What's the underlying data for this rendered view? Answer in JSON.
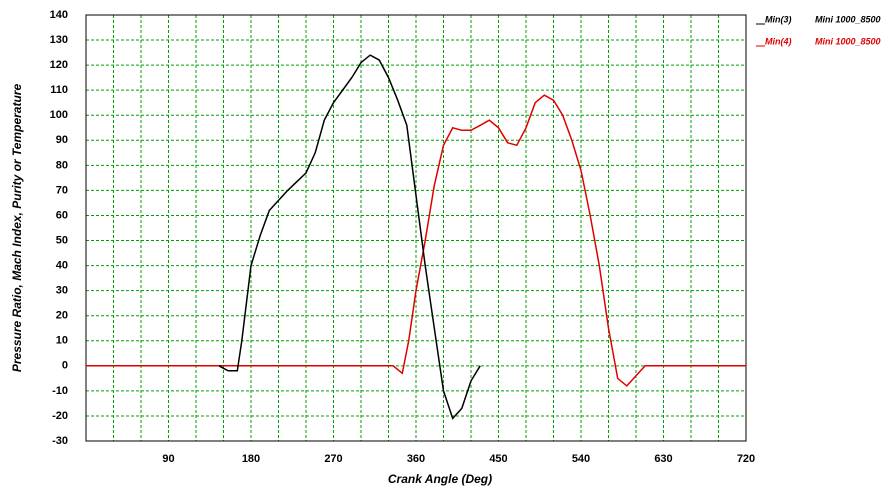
{
  "chart_data": {
    "type": "line",
    "xlabel": "Crank Angle (Deg)",
    "ylabel": "Pressure Ratio, Mach Index, Purity or Temperature",
    "xlim": [
      0,
      720
    ],
    "xticks": [
      90,
      180,
      270,
      360,
      450,
      540,
      630,
      720
    ],
    "xminor_ticks": [
      0,
      30,
      60,
      90,
      120,
      150,
      180,
      210,
      240,
      270,
      300,
      330,
      360,
      390,
      420,
      450,
      480,
      510,
      540,
      570,
      600,
      630,
      660,
      690,
      720
    ],
    "ylim": [
      -30,
      140
    ],
    "yticks": [
      -30,
      -20,
      -10,
      0,
      10,
      20,
      30,
      40,
      50,
      60,
      70,
      80,
      90,
      100,
      110,
      120,
      130,
      140
    ],
    "grid": true,
    "grid_color": "#00a000",
    "series": [
      {
        "name": "Min(3)",
        "label": "Mini 1000_8500",
        "color": "#000000",
        "x": [
          145,
          155,
          165,
          170,
          180,
          190,
          200,
          210,
          220,
          240,
          250,
          260,
          270,
          290,
          300,
          310,
          320,
          330,
          340,
          350,
          360,
          370,
          380,
          390,
          400,
          410,
          420,
          430
        ],
        "values": [
          0,
          -2,
          -2,
          10,
          40,
          52,
          62,
          66,
          70,
          77,
          85,
          98,
          105,
          115,
          121,
          124,
          122,
          115,
          106,
          96,
          68,
          40,
          15,
          -10,
          -21,
          -17,
          -6,
          0
        ]
      },
      {
        "name": "Min(4)",
        "label": "Mini 1000_8500",
        "color": "#e00000",
        "x": [
          0,
          335,
          345,
          352,
          360,
          370,
          380,
          390,
          400,
          410,
          420,
          430,
          440,
          450,
          460,
          470,
          480,
          490,
          500,
          510,
          520,
          530,
          540,
          550,
          560,
          570,
          580,
          590,
          600,
          610,
          720
        ],
        "values": [
          0,
          0,
          -3,
          10,
          30,
          50,
          72,
          88,
          95,
          94,
          94,
          96,
          98,
          95,
          89,
          88,
          95,
          105,
          108,
          106,
          100,
          90,
          78,
          60,
          40,
          15,
          -5,
          -8,
          -4,
          0,
          0
        ]
      }
    ]
  }
}
